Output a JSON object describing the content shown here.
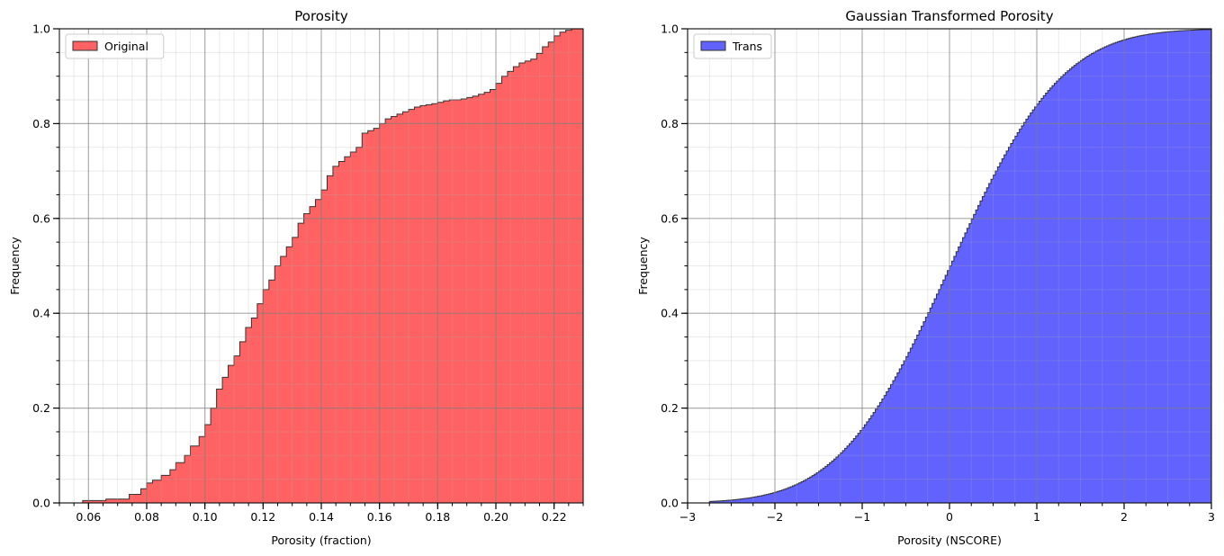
{
  "chart_data": [
    {
      "type": "area",
      "subtype": "cumulative-histogram",
      "title": "Porosity",
      "xlabel": "Porosity (fraction)",
      "ylabel": "Frequency",
      "xlim": [
        0.05,
        0.23
      ],
      "ylim": [
        0.0,
        1.0
      ],
      "xticks": [
        0.06,
        0.08,
        0.1,
        0.12,
        0.14,
        0.16,
        0.18,
        0.2,
        0.22
      ],
      "xtick_labels": [
        "0.06",
        "0.08",
        "0.10",
        "0.12",
        "0.14",
        "0.16",
        "0.18",
        "0.20",
        "0.22"
      ],
      "yticks": [
        0.0,
        0.2,
        0.4,
        0.6,
        0.8,
        1.0
      ],
      "ytick_labels": [
        "0.0",
        "0.2",
        "0.4",
        "0.6",
        "0.8",
        "1.0"
      ],
      "grid": true,
      "minor_grid": true,
      "legend_position": "top-left",
      "series": [
        {
          "name": "Original",
          "color": "#ff6262",
          "edge_color": "#333333",
          "x": [
            0.058,
            0.066,
            0.074,
            0.078,
            0.08,
            0.082,
            0.085,
            0.088,
            0.09,
            0.093,
            0.095,
            0.098,
            0.1,
            0.102,
            0.104,
            0.106,
            0.108,
            0.11,
            0.112,
            0.114,
            0.116,
            0.118,
            0.12,
            0.122,
            0.124,
            0.126,
            0.128,
            0.13,
            0.132,
            0.134,
            0.136,
            0.138,
            0.14,
            0.142,
            0.144,
            0.146,
            0.148,
            0.15,
            0.152,
            0.154,
            0.156,
            0.158,
            0.16,
            0.162,
            0.164,
            0.166,
            0.168,
            0.17,
            0.172,
            0.174,
            0.176,
            0.178,
            0.18,
            0.182,
            0.184,
            0.186,
            0.188,
            0.19,
            0.192,
            0.194,
            0.196,
            0.198,
            0.2,
            0.202,
            0.204,
            0.206,
            0.208,
            0.21,
            0.212,
            0.214,
            0.216,
            0.218,
            0.22,
            0.222,
            0.224,
            0.226,
            0.228,
            0.23
          ],
          "y": [
            0.005,
            0.008,
            0.018,
            0.03,
            0.042,
            0.048,
            0.058,
            0.07,
            0.085,
            0.1,
            0.12,
            0.14,
            0.165,
            0.2,
            0.24,
            0.265,
            0.29,
            0.31,
            0.34,
            0.37,
            0.39,
            0.42,
            0.45,
            0.47,
            0.5,
            0.52,
            0.54,
            0.56,
            0.59,
            0.61,
            0.625,
            0.64,
            0.66,
            0.69,
            0.71,
            0.72,
            0.73,
            0.74,
            0.75,
            0.78,
            0.785,
            0.79,
            0.8,
            0.81,
            0.815,
            0.82,
            0.825,
            0.83,
            0.835,
            0.838,
            0.84,
            0.842,
            0.845,
            0.848,
            0.85,
            0.85,
            0.852,
            0.855,
            0.858,
            0.862,
            0.866,
            0.872,
            0.885,
            0.9,
            0.91,
            0.92,
            0.928,
            0.932,
            0.936,
            0.948,
            0.962,
            0.972,
            0.985,
            0.993,
            0.997,
            1.0,
            1.0,
            1.0
          ]
        }
      ]
    },
    {
      "type": "area",
      "subtype": "cumulative-histogram",
      "title": "Gaussian Transformed Porosity",
      "xlabel": "Porosity (NSCORE)",
      "ylabel": "Frequency",
      "xlim": [
        -3,
        3
      ],
      "ylim": [
        0.0,
        1.0
      ],
      "xticks": [
        -3,
        -2,
        -1,
        0,
        1,
        2,
        3
      ],
      "xtick_labels": [
        "−3",
        "−2",
        "−1",
        "0",
        "1",
        "2",
        "3"
      ],
      "yticks": [
        0.0,
        0.2,
        0.4,
        0.6,
        0.8,
        1.0
      ],
      "ytick_labels": [
        "0.0",
        "0.2",
        "0.4",
        "0.6",
        "0.8",
        "1.0"
      ],
      "grid": true,
      "minor_grid": true,
      "legend_position": "top-left",
      "series": [
        {
          "name": "Trans",
          "color": "#6262ff",
          "edge_color": "#333333",
          "distribution": "standard-normal-cdf",
          "x_start": -2.75,
          "x_end": 3.0
        }
      ]
    }
  ]
}
